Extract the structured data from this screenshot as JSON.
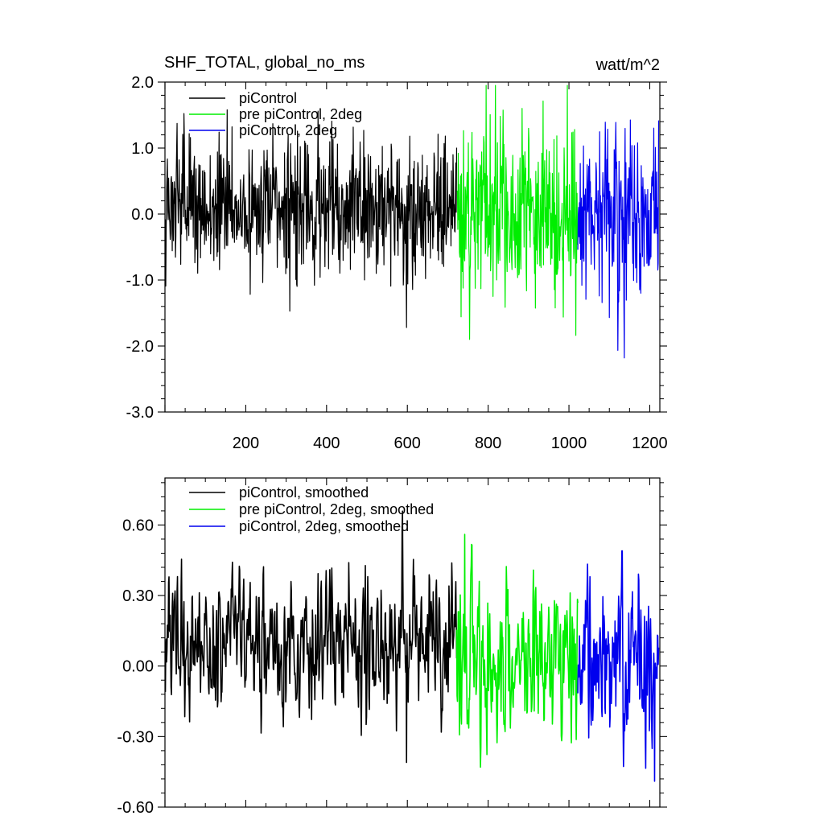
{
  "chart_data": [
    {
      "type": "line",
      "title": "SHF_TOTAL, global_no_ms",
      "units": "watt/m^2",
      "xlim": [
        0,
        1225
      ],
      "ylim": [
        -3.0,
        2.0
      ],
      "x_ticks": [
        200,
        400,
        600,
        800,
        1000,
        1200
      ],
      "x_tick_labels": [
        "200",
        "400",
        "600",
        "800",
        "1000",
        "1200"
      ],
      "y_ticks": [
        -3.0,
        -2.0,
        -1.0,
        0.0,
        1.0,
        2.0
      ],
      "y_tick_labels": [
        "-3.0",
        "-2.0",
        "-1.0",
        "0.0",
        "1.0",
        "2.0"
      ],
      "grid": false,
      "legend_position": "top-left",
      "series": [
        {
          "name": "piControl",
          "color": "#000000",
          "x_range": [
            1,
            722
          ],
          "amplitude": 0.6,
          "mean": 0.1,
          "min": -1.72,
          "max": 1.58,
          "min_at": 598
        },
        {
          "name": "pre piControl, 2deg",
          "color": "#00ee00",
          "x_range": [
            722,
            1022
          ],
          "amplitude": 0.8,
          "mean": 0.0,
          "min": -1.9,
          "max": 1.95,
          "max_at": 795
        },
        {
          "name": "piControl, 2deg",
          "color": "#0000ee",
          "x_range": [
            1022,
            1222
          ],
          "amplitude": 0.75,
          "mean": 0.0,
          "min": -2.18,
          "max": 1.8,
          "min_at": 1137
        }
      ]
    },
    {
      "type": "line",
      "xlim": [
        0,
        1225
      ],
      "ylim": [
        -0.6,
        0.8
      ],
      "x_ticks": [
        200,
        400,
        600,
        800,
        1000,
        1200
      ],
      "y_ticks": [
        -0.6,
        -0.3,
        0.0,
        0.3,
        0.6
      ],
      "y_tick_labels": [
        "-0.60",
        "-0.30",
        "0.00",
        "0.30",
        "0.60"
      ],
      "grid": false,
      "legend_position": "top-left",
      "series": [
        {
          "name": "piControl, smoothed",
          "color": "#000000",
          "x_range": [
            1,
            722
          ],
          "amplitude": 0.17,
          "mean": 0.1,
          "min": -0.41,
          "max": 0.66,
          "min_at": 598
        },
        {
          "name": "pre piControl, 2deg, smoothed",
          "color": "#00ee00",
          "x_range": [
            722,
            1022
          ],
          "amplitude": 0.2,
          "mean": 0.02,
          "min": -0.43,
          "max": 0.56,
          "max_at": 742
        },
        {
          "name": "piControl, 2deg, smoothed",
          "color": "#0000ee",
          "x_range": [
            1022,
            1222
          ],
          "amplitude": 0.2,
          "mean": 0.02,
          "min": -0.49,
          "max": 0.49,
          "min_at": 1212
        }
      ]
    }
  ]
}
